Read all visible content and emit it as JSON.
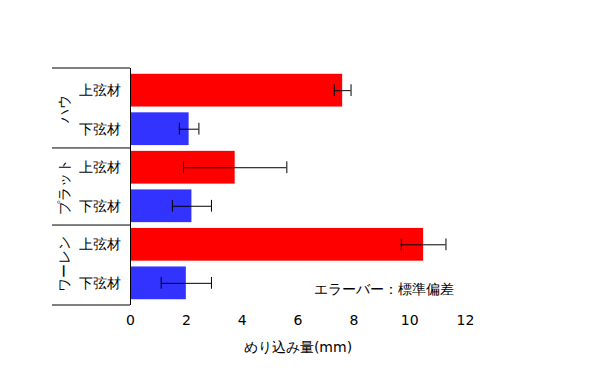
{
  "chart_data": {
    "type": "bar",
    "orientation": "horizontal",
    "categories": [
      "上弦材",
      "下弦材",
      "上弦材",
      "下弦材",
      "上弦材",
      "下弦材"
    ],
    "groups": [
      "ハウ",
      "ハウ",
      "プラット",
      "プラット",
      "ワーレン",
      "ワーレン"
    ],
    "values": [
      7.6,
      2.1,
      3.75,
      2.2,
      10.5,
      2.0
    ],
    "error": [
      0.3,
      0.35,
      1.85,
      0.7,
      0.8,
      0.9
    ],
    "colors": [
      "#ff0000",
      "#3333ff",
      "#ff0000",
      "#3333ff",
      "#ff0000",
      "#3333ff"
    ],
    "xlabel": "めり込み量(mm)",
    "xlim": [
      0,
      12
    ],
    "xticks": [
      0,
      2,
      4,
      6,
      8,
      10,
      12
    ],
    "annotation": "エラーバー：標準偏差"
  }
}
